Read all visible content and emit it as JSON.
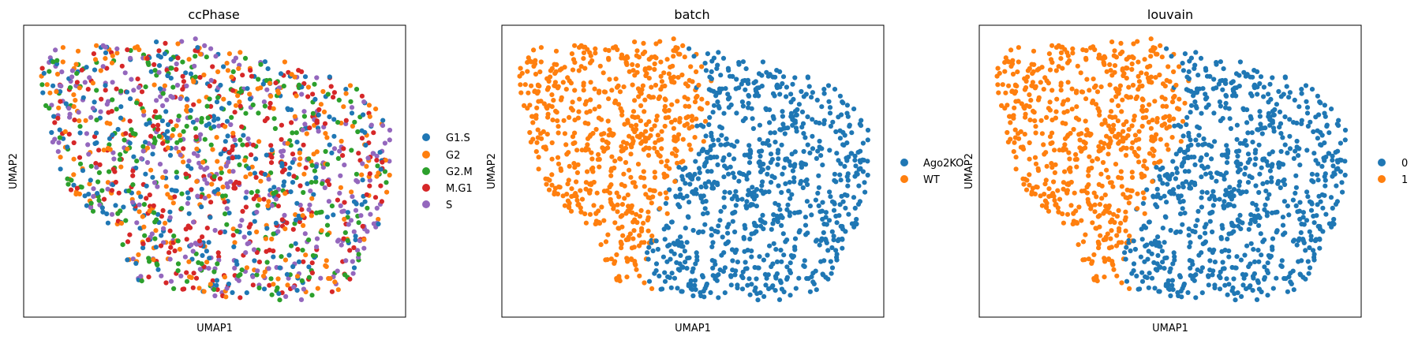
{
  "chart_data": [
    {
      "type": "scatter",
      "title": "ccPhase",
      "xlabel": "UMAP1",
      "ylabel": "UMAP2",
      "xticks": [],
      "yticks": [],
      "legend_position": "right",
      "categories": [
        "G1.S",
        "G2",
        "G2.M",
        "M.G1",
        "S"
      ],
      "colors": [
        "#1f77b4",
        "#ff7f0e",
        "#2ca02c",
        "#d62728",
        "#9467bd"
      ],
      "coloring": "mixed",
      "n_points": 1450
    },
    {
      "type": "scatter",
      "title": "batch",
      "xlabel": "UMAP1",
      "ylabel": "UMAP2",
      "xticks": [],
      "yticks": [],
      "legend_position": "right",
      "categories": [
        "Ago2KO",
        "WT"
      ],
      "colors": [
        "#1f77b4",
        "#ff7f0e"
      ],
      "coloring": "split",
      "n_points": 1450
    },
    {
      "type": "scatter",
      "title": "louvain",
      "xlabel": "UMAP1",
      "ylabel": "UMAP2",
      "xticks": [],
      "yticks": [],
      "legend_position": "right",
      "categories": [
        "0",
        "1"
      ],
      "colors": [
        "#1f77b4",
        "#ff7f0e"
      ],
      "coloring": "split",
      "n_points": 1450
    }
  ]
}
